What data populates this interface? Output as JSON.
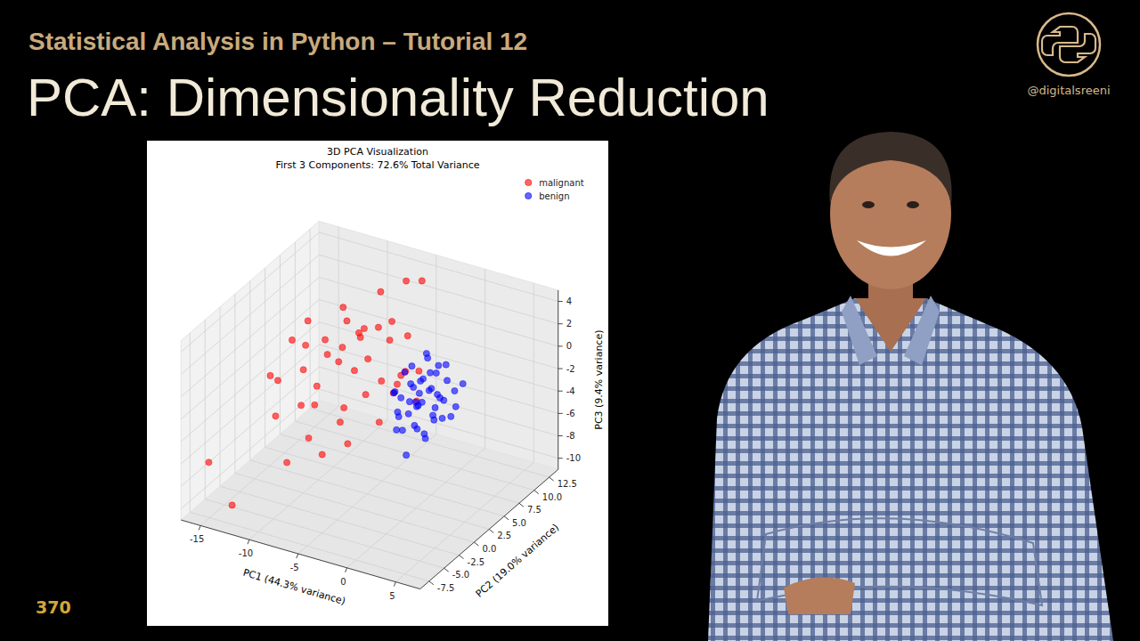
{
  "header": {
    "subtitle": "Statistical Analysis in Python – Tutorial 12",
    "title": "PCA: Dimensionality Reduction"
  },
  "logo": {
    "handle": "@digitalsreeni"
  },
  "episode": "370",
  "chart_data": {
    "type": "scatter3d",
    "title": "3D PCA Visualization",
    "subtitle": "First 3 Components: 72.6% Total Variance",
    "x_label": "PC1 (44.3% variance)",
    "y_label": "PC2 (19.0% variance)",
    "z_label": "PC3 (9.4% variance)",
    "xlim": [
      -17,
      7.5
    ],
    "ylim": [
      -9,
      14
    ],
    "zlim": [
      -11,
      5
    ],
    "xticks": [
      -15,
      -10,
      -5,
      0,
      5
    ],
    "yticks": [
      -7.5,
      {
        "value": -5,
        "label": "-5.0"
      },
      -2.5,
      {
        "value": 0,
        "label": "0.0"
      },
      2.5,
      {
        "value": 5,
        "label": "5.0"
      },
      7.5,
      {
        "value": 10,
        "label": "10.0"
      },
      12.5
    ],
    "zticks": [
      -10,
      -8,
      -6,
      -4,
      -2,
      0,
      2,
      4
    ],
    "grid": true,
    "legend": "upper right",
    "marker": "circle",
    "series": [
      {
        "name": "malignant",
        "color": "#ff0000",
        "x": [
          -5,
          -4,
          -9,
          -8,
          -7,
          -6,
          -10,
          -11,
          -12,
          -9,
          -8,
          -7,
          -6,
          -5,
          -4,
          -3,
          -3,
          -2,
          -2,
          -1,
          -1,
          0,
          0,
          -4,
          -6,
          -8,
          -10,
          -13,
          -14,
          -11,
          -7,
          -5,
          -4,
          -3,
          -2,
          1,
          -6,
          -9,
          -12,
          -5,
          -16,
          -13,
          -7,
          -3,
          -8
        ],
        "y": [
          9,
          10,
          2,
          4,
          1,
          3,
          0,
          2,
          -1,
          -2,
          -1,
          -3,
          0,
          2,
          1,
          3,
          -1,
          0,
          2,
          1,
          -2,
          0,
          3,
          5,
          6,
          6,
          4,
          3,
          1,
          -3,
          -4,
          -2,
          -3,
          6,
          4,
          1,
          2,
          5,
          4,
          -5,
          -6,
          -7,
          8,
          -4,
          -6
        ],
        "z": [
          5,
          4.8,
          2,
          3,
          1,
          2.5,
          0,
          1,
          -1,
          -2,
          -0.5,
          -1,
          3,
          4,
          2,
          3,
          0,
          1,
          -1,
          0.5,
          -1.5,
          2,
          1,
          3.5,
          2,
          1,
          -0.5,
          0.5,
          -2,
          -3,
          -3.5,
          -2.5,
          -0.5,
          2,
          0,
          -0.5,
          0,
          3.5,
          2,
          -4,
          -7,
          -9.6,
          4,
          -3,
          -5
        ]
      },
      {
        "name": "benign",
        "color": "#0000ff",
        "x": [
          2.5,
          3,
          2,
          1.5,
          3.5,
          4,
          2,
          3,
          1,
          2.5,
          4.5,
          3.5,
          2,
          1,
          0.5,
          1.5,
          3,
          4,
          5,
          2,
          3,
          1,
          2.5,
          3.5,
          4,
          5.5,
          1.5,
          0,
          2,
          3,
          4.5,
          2.5,
          1,
          3.5,
          0.5,
          2,
          4,
          3,
          1.5,
          5,
          2.5,
          3.5,
          0,
          4.5,
          2
        ],
        "y": [
          -1,
          -2,
          0,
          -1,
          -1,
          0,
          -2,
          0,
          0,
          1,
          -2,
          -3,
          -3,
          -2,
          1,
          2,
          1,
          1,
          -1,
          -1,
          -1,
          -1,
          2,
          0,
          -3,
          0,
          0,
          -1,
          1,
          -4,
          1,
          -2,
          1,
          2,
          -2,
          3,
          -1,
          2,
          -3,
          1,
          0,
          -2,
          0,
          3,
          -4
        ],
        "z": [
          1.5,
          1,
          2,
          0.5,
          2,
          1,
          0,
          3,
          1.5,
          1,
          0.5,
          -0.5,
          -1,
          -0.5,
          2.5,
          3,
          2.5,
          3.5,
          1.5,
          -1.5,
          -2,
          3,
          0,
          0,
          2,
          2,
          0,
          1,
          4,
          -2.5,
          -1,
          2.5,
          -1,
          1.5,
          1.5,
          2,
          -0.5,
          -2,
          0.5,
          0,
          -3,
          3.5,
          0,
          1,
          -0.5
        ]
      }
    ]
  }
}
